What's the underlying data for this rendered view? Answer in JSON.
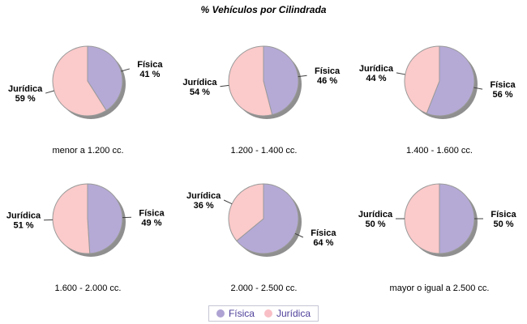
{
  "chart_data": {
    "type": "pie",
    "title": "% Vehículos por Cilindrada",
    "series_names": [
      "Física",
      "Jurídica"
    ],
    "unit": "%",
    "legend_position": "bottom-center",
    "layout": "3x2 grid of pies, labels outside with callout lines, drop shadow",
    "colors": {
      "fisica": "#b5aad6",
      "juridica": "#fbcaca",
      "shadow": "#8f8f8f",
      "outline": "#9a9a9a",
      "callout": "#404040",
      "label_text": "#000000",
      "legend_text": "#4d3f99",
      "legend_border": "#c6c6d6",
      "legend_fisica_dot": "#aea3d3",
      "legend_juridica_dot": "#f9bfc6"
    },
    "charts": [
      {
        "category": "menor a 1.200 cc.",
        "fisica": 41,
        "juridica": 59
      },
      {
        "category": "1.200 - 1.400 cc.",
        "fisica": 46,
        "juridica": 54
      },
      {
        "category": "1.400 - 1.600 cc.",
        "fisica": 56,
        "juridica": 44
      },
      {
        "category": "1.600 - 2.000 cc.",
        "fisica": 49,
        "juridica": 51
      },
      {
        "category": "2.000 - 2.500 cc.",
        "fisica": 64,
        "juridica": 36
      },
      {
        "category": "mayor o igual a 2.500 cc.",
        "fisica": 50,
        "juridica": 50
      }
    ]
  }
}
